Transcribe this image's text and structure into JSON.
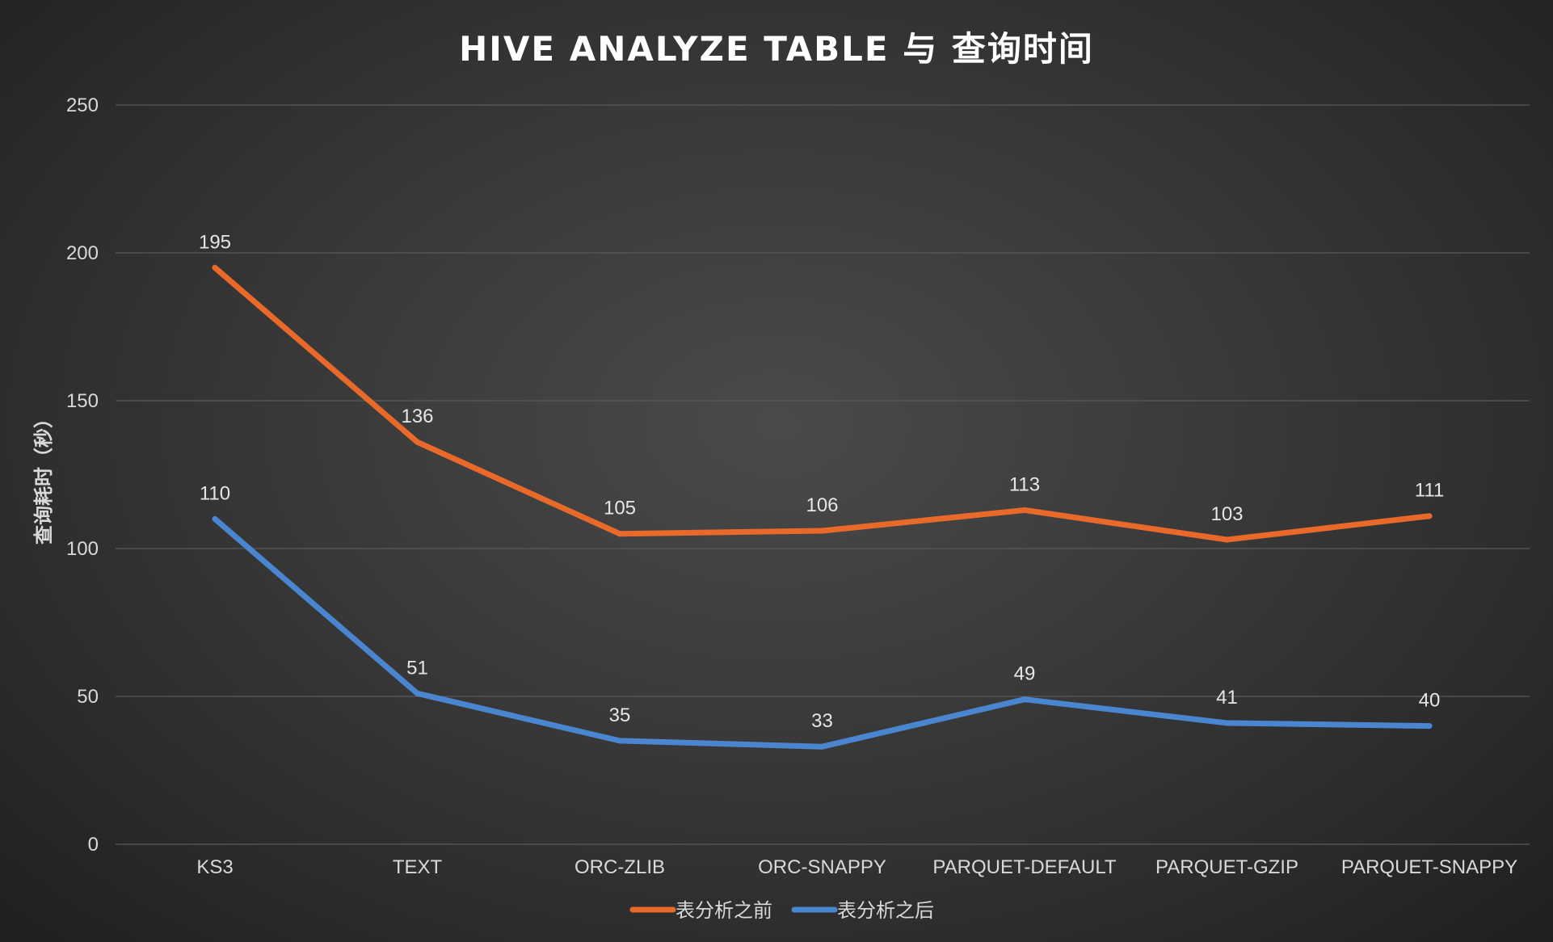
{
  "chart_data": {
    "type": "line",
    "title": "HIVE ANALYZE TABLE 与 查询时间",
    "xlabel": "",
    "ylabel": "查询耗时（秒）",
    "categories": [
      "KS3",
      "TEXT",
      "ORC-ZLIB",
      "ORC-SNAPPY",
      "PARQUET-DEFAULT",
      "PARQUET-GZIP",
      "PARQUET-SNAPPY"
    ],
    "ylim": [
      0,
      250
    ],
    "yticks": [
      0,
      50,
      100,
      150,
      200,
      250
    ],
    "grid": true,
    "legend_position": "bottom",
    "data_labels": true,
    "series": [
      {
        "name": "表分析之前",
        "color": "#e8692a",
        "values": [
          195,
          136,
          105,
          106,
          113,
          103,
          111
        ]
      },
      {
        "name": "表分析之后",
        "color": "#4a86d0",
        "values": [
          110,
          51,
          35,
          33,
          49,
          41,
          40
        ]
      }
    ]
  }
}
